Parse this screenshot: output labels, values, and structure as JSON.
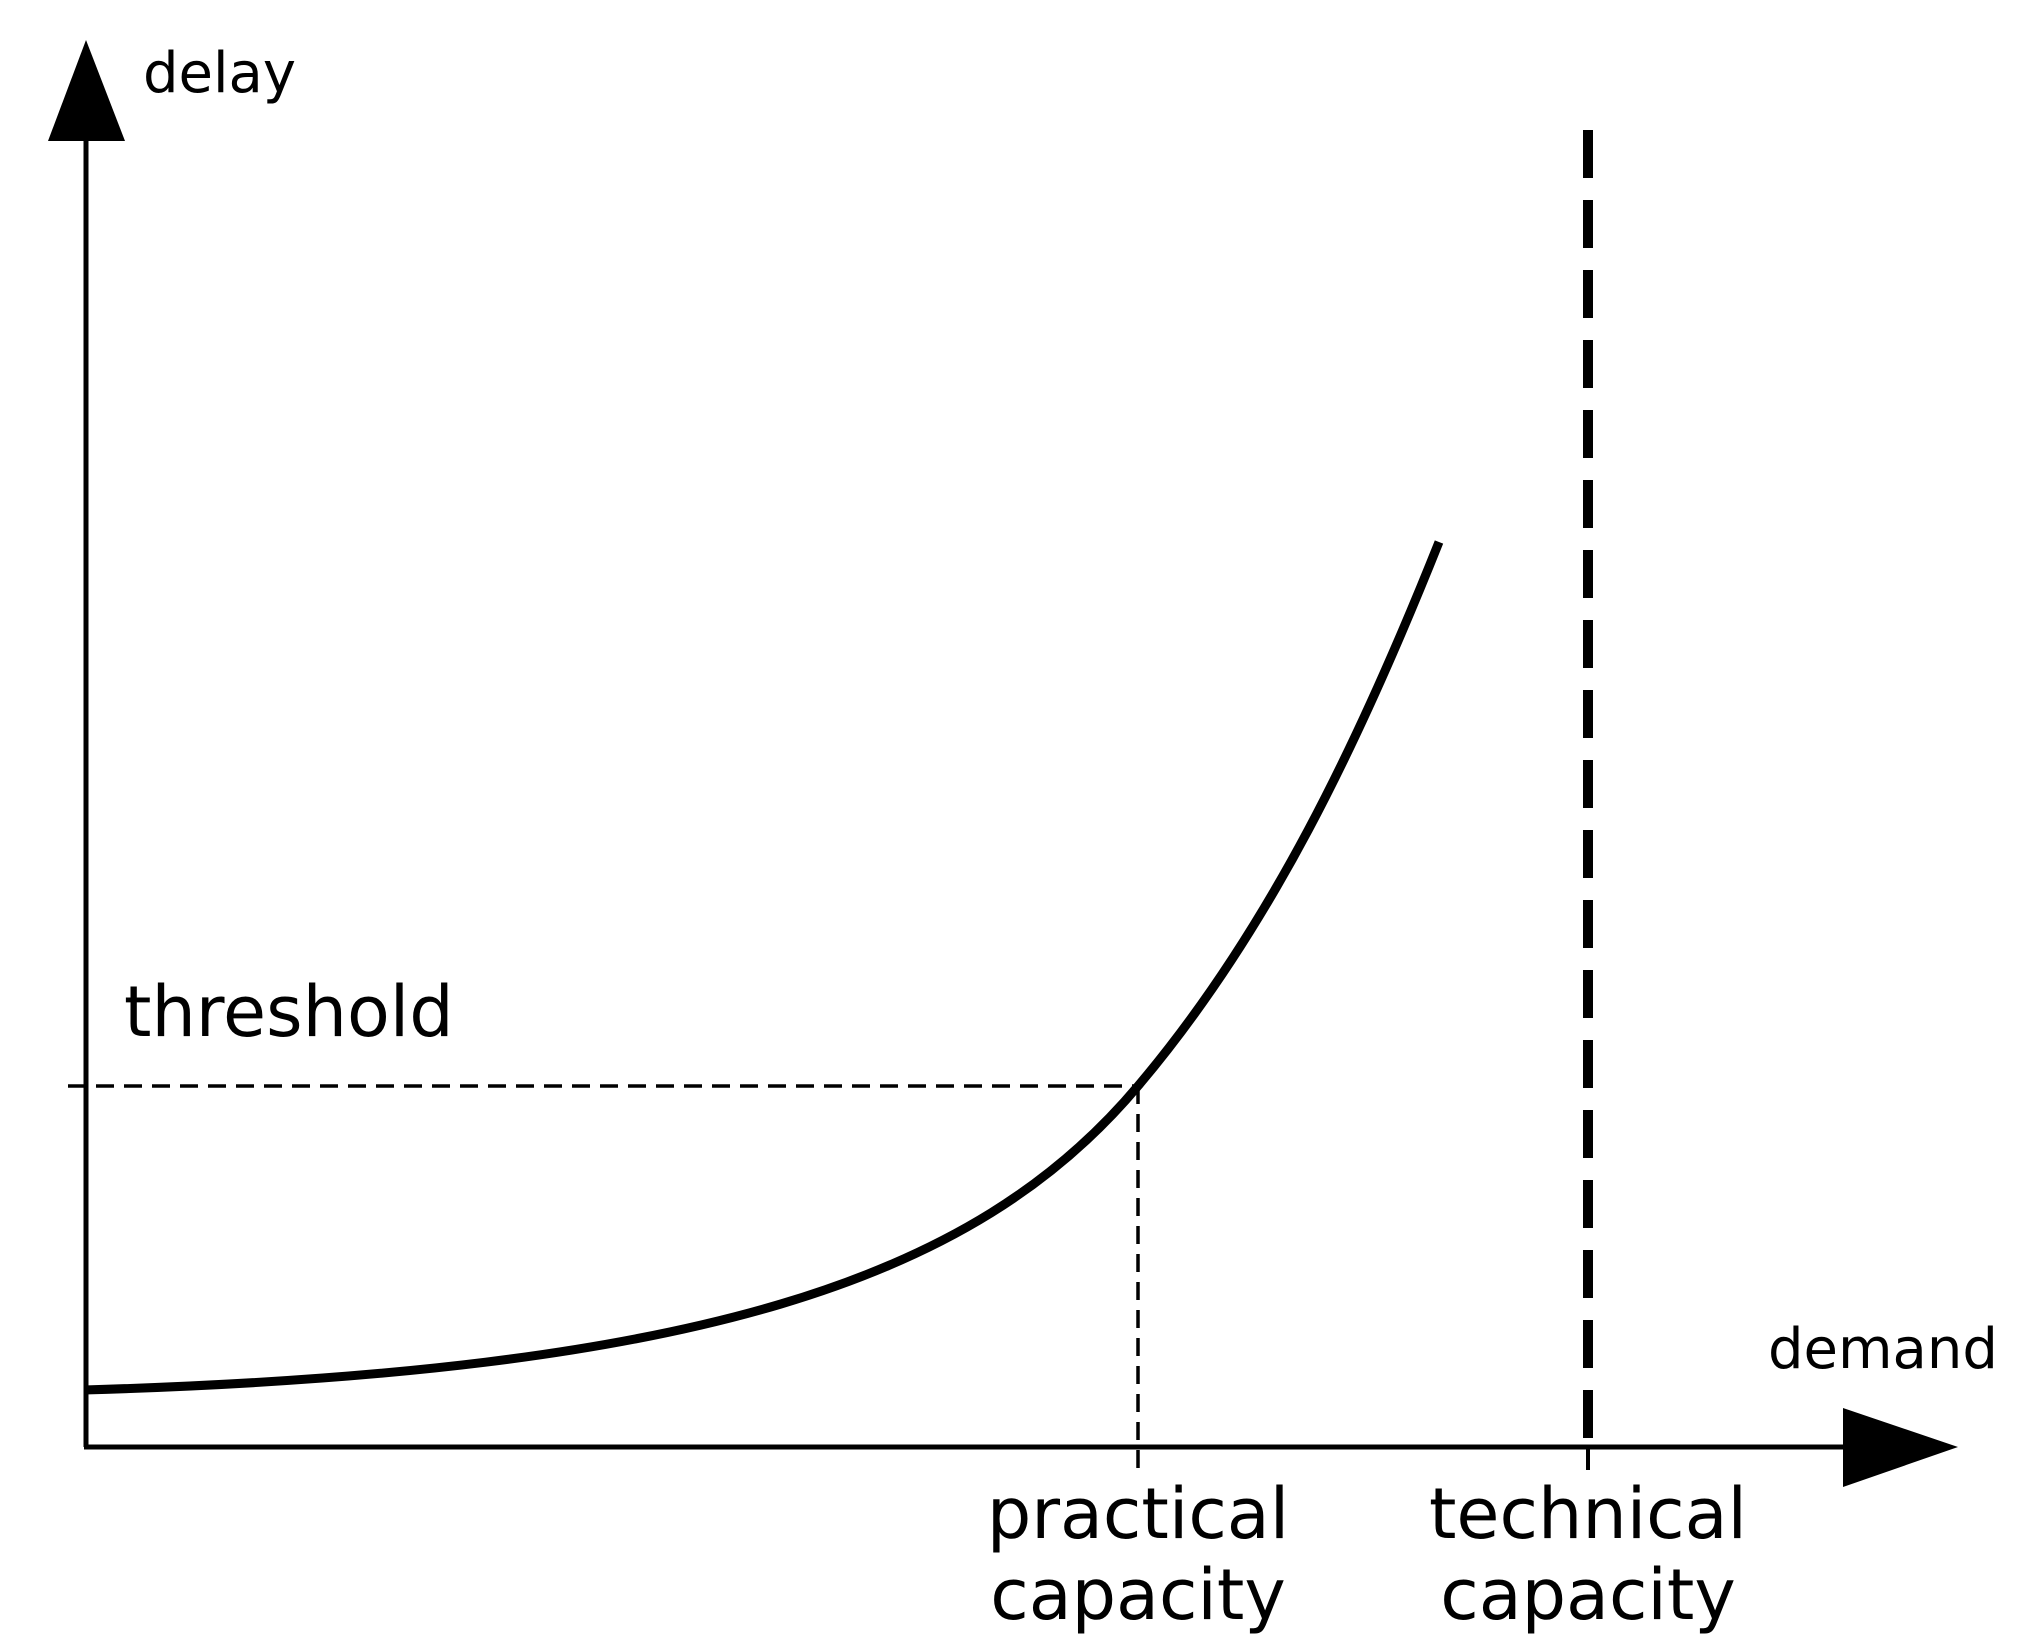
{
  "axes": {
    "y_label": "delay",
    "x_label": "demand"
  },
  "threshold": {
    "label": "threshold"
  },
  "markers": {
    "practical_line1": "practical",
    "practical_line2": "capacity",
    "technical_line1": "technical",
    "technical_line2": "capacity"
  },
  "colors": {
    "ink": "#000000",
    "background": "#ffffff"
  }
}
